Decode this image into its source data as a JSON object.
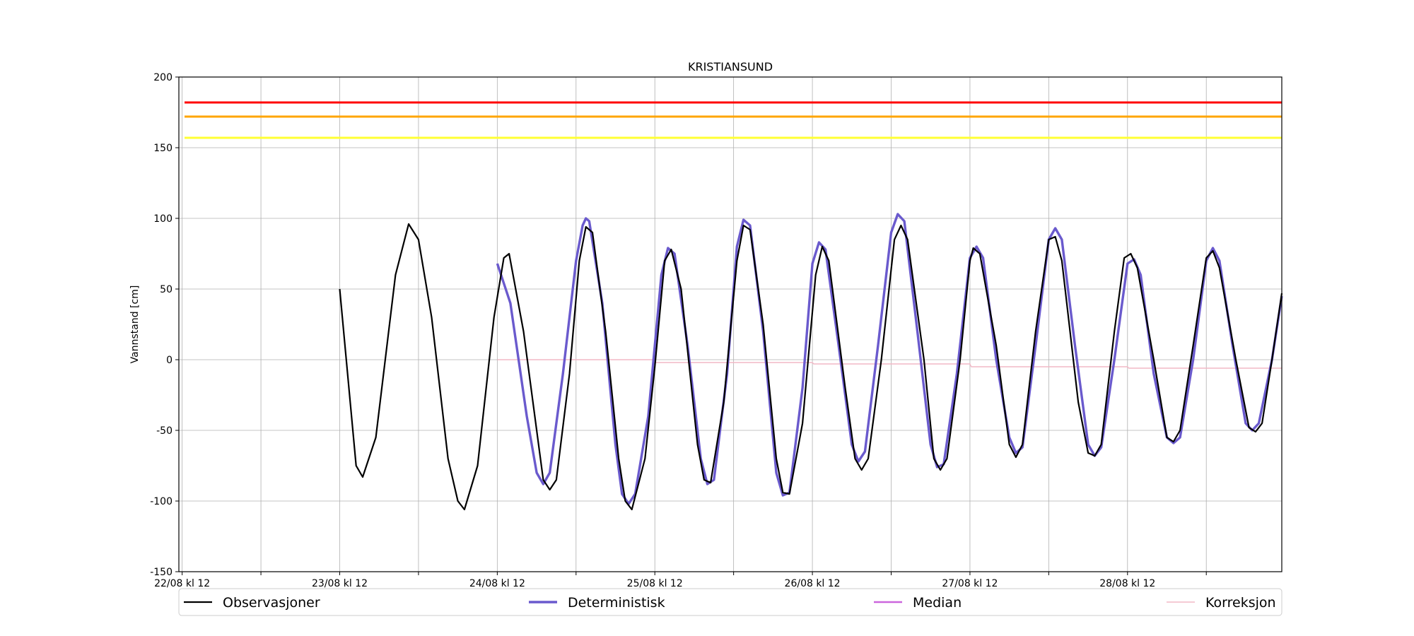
{
  "chart_data": {
    "type": "line",
    "title": "KRISTIANSUND",
    "xlabel": "",
    "ylabel": "Vannstand [cm]",
    "ylim": [
      -150,
      200
    ],
    "xlim_hours": [
      -0.5,
      167.5
    ],
    "yticks": [
      -150,
      -100,
      -50,
      0,
      50,
      100,
      150,
      200
    ],
    "x_tick_hours": [
      0,
      12,
      24,
      36,
      48,
      60,
      72,
      84,
      96,
      108,
      120,
      132,
      144,
      156
    ],
    "x_tick_labels": [
      "22/08 kl 12",
      "",
      "23/08 kl 12",
      "",
      "24/08 kl 12",
      "",
      "25/08 kl 12",
      "",
      "26/08 kl 12",
      "",
      "27/08 kl 12",
      "",
      "28/08 kl 12",
      ""
    ],
    "grid": true,
    "legend_position": "bottom",
    "thresholds": [
      {
        "value": 182,
        "color": "#ff0000"
      },
      {
        "value": 172,
        "color": "#ffa500"
      },
      {
        "value": 157,
        "color": "#ffff33"
      }
    ],
    "series": [
      {
        "name": "Observasjoner",
        "color": "#000000",
        "points": [
          [
            24,
            50
          ],
          [
            26.5,
            -75
          ],
          [
            27.5,
            -83
          ],
          [
            29.5,
            -55
          ],
          [
            32.5,
            60
          ],
          [
            34.5,
            96
          ],
          [
            36,
            85
          ],
          [
            38,
            30
          ],
          [
            40.5,
            -70
          ],
          [
            42,
            -100
          ],
          [
            43,
            -106
          ],
          [
            45,
            -75
          ],
          [
            47.5,
            30
          ],
          [
            49,
            72
          ],
          [
            49.8,
            75
          ],
          [
            52,
            20
          ],
          [
            55,
            -85
          ],
          [
            56,
            -92
          ],
          [
            57,
            -85
          ],
          [
            59,
            -10
          ],
          [
            60.5,
            70
          ],
          [
            61.5,
            94
          ],
          [
            62.5,
            90
          ],
          [
            64.5,
            20
          ],
          [
            66.5,
            -70
          ],
          [
            67.5,
            -100
          ],
          [
            68.5,
            -106
          ],
          [
            70.5,
            -70
          ],
          [
            72,
            -5
          ],
          [
            73.5,
            70
          ],
          [
            74.5,
            78
          ],
          [
            76,
            50
          ],
          [
            78.5,
            -60
          ],
          [
            79.5,
            -85
          ],
          [
            80.5,
            -87
          ],
          [
            82.5,
            -30
          ],
          [
            84.5,
            70
          ],
          [
            85.5,
            95
          ],
          [
            86.5,
            92
          ],
          [
            88.5,
            25
          ],
          [
            90.5,
            -70
          ],
          [
            91.5,
            -94
          ],
          [
            92.5,
            -95
          ],
          [
            94.5,
            -45
          ],
          [
            96.5,
            60
          ],
          [
            97.5,
            80
          ],
          [
            98.5,
            70
          ],
          [
            101,
            -20
          ],
          [
            102.5,
            -70
          ],
          [
            103.5,
            -78
          ],
          [
            104.5,
            -70
          ],
          [
            106.5,
            0
          ],
          [
            108.5,
            85
          ],
          [
            109.5,
            95
          ],
          [
            110.5,
            85
          ],
          [
            113,
            0
          ],
          [
            114.5,
            -70
          ],
          [
            115.5,
            -78
          ],
          [
            116.5,
            -70
          ],
          [
            118.5,
            0
          ],
          [
            120,
            70
          ],
          [
            120.5,
            79
          ],
          [
            121.5,
            75
          ],
          [
            124,
            10
          ],
          [
            126,
            -60
          ],
          [
            127,
            -69
          ],
          [
            128,
            -60
          ],
          [
            130,
            20
          ],
          [
            132,
            85
          ],
          [
            133,
            87
          ],
          [
            134,
            70
          ],
          [
            136.5,
            -30
          ],
          [
            138,
            -66
          ],
          [
            139,
            -68
          ],
          [
            140,
            -60
          ],
          [
            142,
            20
          ],
          [
            143.5,
            72
          ],
          [
            144.5,
            75
          ],
          [
            145.5,
            65
          ],
          [
            148,
            0
          ],
          [
            150,
            -55
          ],
          [
            151,
            -58
          ],
          [
            152,
            -50
          ],
          [
            154,
            10
          ],
          [
            156,
            72
          ],
          [
            157,
            77
          ],
          [
            158,
            65
          ],
          [
            160.5,
            0
          ],
          [
            162.5,
            -48
          ],
          [
            163.5,
            -51
          ],
          [
            164.5,
            -45
          ],
          [
            166,
            0
          ],
          [
            167.5,
            47
          ]
        ]
      },
      {
        "name": "Deterministisk",
        "color": "#6a5acd",
        "points": [
          [
            48,
            68
          ],
          [
            50,
            40
          ],
          [
            52.5,
            -40
          ],
          [
            54,
            -80
          ],
          [
            55,
            -88
          ],
          [
            56,
            -80
          ],
          [
            58,
            -10
          ],
          [
            60,
            70
          ],
          [
            61,
            95
          ],
          [
            61.5,
            100
          ],
          [
            62,
            98
          ],
          [
            64,
            40
          ],
          [
            66,
            -60
          ],
          [
            67,
            -95
          ],
          [
            68,
            -102
          ],
          [
            69,
            -95
          ],
          [
            71,
            -40
          ],
          [
            73,
            60
          ],
          [
            74,
            79
          ],
          [
            75,
            75
          ],
          [
            77,
            10
          ],
          [
            79,
            -70
          ],
          [
            80,
            -88
          ],
          [
            81,
            -85
          ],
          [
            83,
            -10
          ],
          [
            84.5,
            80
          ],
          [
            85.5,
            99
          ],
          [
            86.5,
            95
          ],
          [
            88.5,
            20
          ],
          [
            90.5,
            -80
          ],
          [
            91.5,
            -96
          ],
          [
            92.5,
            -94
          ],
          [
            94.5,
            -20
          ],
          [
            96,
            68
          ],
          [
            97,
            83
          ],
          [
            98,
            78
          ],
          [
            100,
            10
          ],
          [
            102,
            -60
          ],
          [
            103,
            -72
          ],
          [
            104,
            -65
          ],
          [
            106,
            10
          ],
          [
            108,
            90
          ],
          [
            109,
            103
          ],
          [
            110,
            98
          ],
          [
            112,
            20
          ],
          [
            114,
            -60
          ],
          [
            115,
            -76
          ],
          [
            116,
            -74
          ],
          [
            118,
            -10
          ],
          [
            120,
            72
          ],
          [
            121,
            80
          ],
          [
            122,
            72
          ],
          [
            124,
            0
          ],
          [
            126,
            -55
          ],
          [
            127,
            -66
          ],
          [
            128,
            -62
          ],
          [
            130,
            10
          ],
          [
            132,
            85
          ],
          [
            133,
            93
          ],
          [
            134,
            85
          ],
          [
            136,
            10
          ],
          [
            138,
            -60
          ],
          [
            139,
            -68
          ],
          [
            140,
            -62
          ],
          [
            142,
            0
          ],
          [
            144,
            68
          ],
          [
            145,
            71
          ],
          [
            146,
            60
          ],
          [
            148,
            -10
          ],
          [
            150,
            -55
          ],
          [
            151,
            -59
          ],
          [
            152,
            -55
          ],
          [
            154,
            0
          ],
          [
            156,
            70
          ],
          [
            157,
            79
          ],
          [
            158,
            70
          ],
          [
            160,
            10
          ],
          [
            162,
            -45
          ],
          [
            163,
            -50
          ],
          [
            164,
            -45
          ],
          [
            166,
            0
          ],
          [
            167.5,
            45
          ]
        ]
      },
      {
        "name": "Median",
        "color": "#cc66dd",
        "points": []
      },
      {
        "name": "Korreksjon",
        "color": "#f2b8c6",
        "points": [
          [
            48,
            0
          ],
          [
            72,
            0
          ],
          [
            72.2,
            -2
          ],
          [
            96,
            -2
          ],
          [
            96.2,
            -3
          ],
          [
            120,
            -3
          ],
          [
            120.2,
            -5
          ],
          [
            144,
            -5
          ],
          [
            144.2,
            -6
          ],
          [
            167.5,
            -6
          ]
        ]
      }
    ]
  }
}
